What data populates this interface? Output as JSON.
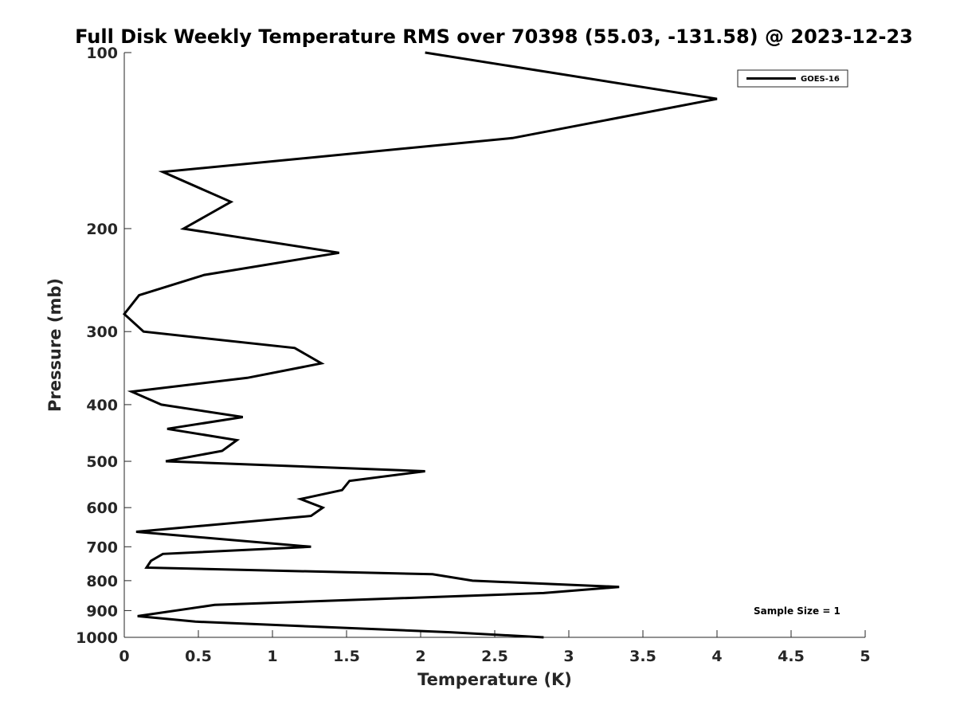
{
  "chart_data": {
    "type": "line",
    "title": "Full Disk Weekly Temperature RMS over 70398 (55.03, -131.58) @ 2023-12-23",
    "xlabel": "Temperature (K)",
    "ylabel": "Pressure (mb)",
    "xlim": [
      0,
      5
    ],
    "ylim": [
      100,
      1000
    ],
    "y_scale": "log",
    "y_reversed": true,
    "x_ticks": [
      0,
      0.5,
      1,
      1.5,
      2,
      2.5,
      3,
      3.5,
      4,
      4.5,
      5
    ],
    "x_tick_labels": [
      "0",
      "0.5",
      "1",
      "1.5",
      "2",
      "2.5",
      "3",
      "3.5",
      "4",
      "4.5",
      "5"
    ],
    "y_ticks": [
      100,
      200,
      300,
      400,
      500,
      600,
      700,
      800,
      900,
      1000
    ],
    "y_tick_labels": [
      "100",
      "200",
      "300",
      "400",
      "500",
      "600",
      "700",
      "800",
      "900",
      "1000"
    ],
    "grid": false,
    "legend_position": "top-right",
    "annotation": "Sample Size = 1",
    "series": [
      {
        "name": "GOES-16",
        "color": "#000000",
        "x": [
          2.03,
          4.0,
          2.62,
          0.26,
          0.72,
          0.4,
          1.45,
          0.54,
          0.1,
          0.0,
          0.13,
          1.15,
          1.33,
          0.83,
          0.05,
          0.25,
          0.8,
          0.29,
          0.76,
          0.66,
          0.28,
          2.03,
          1.52,
          1.47,
          1.19,
          1.34,
          1.26,
          0.08,
          1.26,
          0.26,
          0.18,
          0.15,
          2.08,
          2.35,
          3.34,
          2.83,
          0.61,
          0.09,
          0.48,
          2.2,
          2.83
        ],
        "y": [
          100,
          120,
          140,
          160,
          180,
          200,
          220,
          240,
          260,
          280,
          300,
          320,
          340,
          360,
          380,
          400,
          420,
          440,
          460,
          480,
          500,
          520,
          540,
          560,
          580,
          600,
          620,
          660,
          700,
          720,
          740,
          760,
          780,
          800,
          820,
          840,
          880,
          920,
          940,
          980,
          1000
        ]
      }
    ]
  }
}
